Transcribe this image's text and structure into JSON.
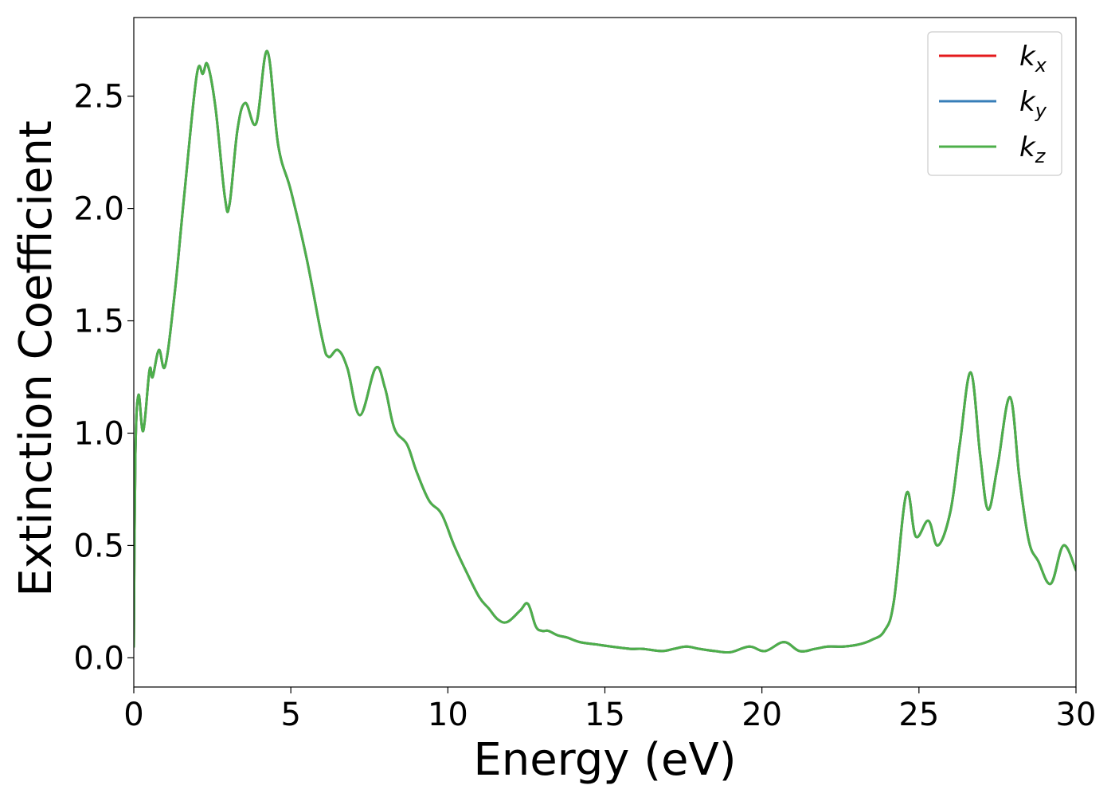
{
  "chart_data": {
    "type": "line",
    "xlabel": "Energy (eV)",
    "ylabel": "Extinction Coefficient",
    "xlim": [
      0,
      30
    ],
    "ylim": [
      -0.13,
      2.85
    ],
    "xticks": [
      "0",
      "5",
      "10",
      "15",
      "20",
      "25",
      "30"
    ],
    "yticks": [
      "0.0",
      "0.5",
      "1.0",
      "1.5",
      "2.0",
      "2.5"
    ],
    "grid": false,
    "legend_position": "top-right",
    "x": [
      0,
      0.05,
      0.15,
      0.3,
      0.5,
      0.6,
      0.8,
      1.0,
      1.3,
      1.6,
      2.0,
      2.2,
      2.35,
      2.6,
      2.9,
      3.05,
      3.3,
      3.55,
      3.9,
      4.25,
      4.6,
      5.0,
      5.5,
      6.0,
      6.2,
      6.5,
      6.8,
      7.2,
      7.7,
      8.0,
      8.3,
      8.7,
      9.0,
      9.4,
      9.8,
      10.2,
      10.6,
      11.0,
      11.3,
      11.6,
      11.9,
      12.3,
      12.55,
      12.8,
      13.0,
      13.2,
      13.5,
      13.8,
      14.2,
      14.7,
      15.2,
      15.8,
      16.2,
      16.8,
      17.2,
      17.6,
      18.0,
      18.5,
      19.0,
      19.6,
      20.1,
      20.7,
      21.2,
      21.7,
      22.1,
      22.6,
      23.1,
      23.5,
      23.9,
      24.2,
      24.6,
      24.9,
      25.3,
      25.6,
      26.0,
      26.3,
      26.65,
      26.95,
      27.2,
      27.5,
      27.9,
      28.2,
      28.5,
      28.8,
      29.2,
      29.6,
      30.0
    ],
    "series": [
      {
        "name": "k_x",
        "name_main": "k",
        "name_sub": "x",
        "color": "#e41a1c",
        "values": [
          0.05,
          0.9,
          1.17,
          1.01,
          1.28,
          1.25,
          1.37,
          1.3,
          1.62,
          2.05,
          2.59,
          2.6,
          2.64,
          2.45,
          2.05,
          2.02,
          2.35,
          2.47,
          2.38,
          2.7,
          2.28,
          2.08,
          1.78,
          1.42,
          1.34,
          1.37,
          1.29,
          1.08,
          1.29,
          1.2,
          1.02,
          0.95,
          0.83,
          0.7,
          0.64,
          0.5,
          0.38,
          0.27,
          0.22,
          0.17,
          0.16,
          0.21,
          0.24,
          0.14,
          0.12,
          0.12,
          0.1,
          0.09,
          0.07,
          0.06,
          0.05,
          0.04,
          0.04,
          0.03,
          0.04,
          0.05,
          0.04,
          0.03,
          0.025,
          0.05,
          0.03,
          0.07,
          0.03,
          0.04,
          0.05,
          0.05,
          0.06,
          0.08,
          0.12,
          0.25,
          0.73,
          0.54,
          0.61,
          0.5,
          0.65,
          0.95,
          1.27,
          0.9,
          0.66,
          0.85,
          1.16,
          0.8,
          0.52,
          0.43,
          0.33,
          0.5,
          0.39
        ]
      },
      {
        "name": "k_y",
        "name_main": "k",
        "name_sub": "y",
        "color": "#377eb8",
        "values": [
          0.05,
          0.9,
          1.17,
          1.01,
          1.28,
          1.25,
          1.37,
          1.3,
          1.62,
          2.05,
          2.59,
          2.6,
          2.64,
          2.45,
          2.05,
          2.02,
          2.35,
          2.47,
          2.38,
          2.7,
          2.28,
          2.08,
          1.78,
          1.42,
          1.34,
          1.37,
          1.29,
          1.08,
          1.29,
          1.2,
          1.02,
          0.95,
          0.83,
          0.7,
          0.64,
          0.5,
          0.38,
          0.27,
          0.22,
          0.17,
          0.16,
          0.21,
          0.24,
          0.14,
          0.12,
          0.12,
          0.1,
          0.09,
          0.07,
          0.06,
          0.05,
          0.04,
          0.04,
          0.03,
          0.04,
          0.05,
          0.04,
          0.03,
          0.025,
          0.05,
          0.03,
          0.07,
          0.03,
          0.04,
          0.05,
          0.05,
          0.06,
          0.08,
          0.12,
          0.25,
          0.73,
          0.54,
          0.61,
          0.5,
          0.65,
          0.95,
          1.27,
          0.9,
          0.66,
          0.85,
          1.16,
          0.8,
          0.52,
          0.43,
          0.33,
          0.5,
          0.39
        ]
      },
      {
        "name": "k_z",
        "name_main": "k",
        "name_sub": "z",
        "color": "#4daf4a",
        "values": [
          0.05,
          0.9,
          1.17,
          1.01,
          1.28,
          1.25,
          1.37,
          1.3,
          1.62,
          2.05,
          2.59,
          2.6,
          2.64,
          2.45,
          2.05,
          2.02,
          2.35,
          2.47,
          2.38,
          2.7,
          2.28,
          2.08,
          1.78,
          1.42,
          1.34,
          1.37,
          1.29,
          1.08,
          1.29,
          1.2,
          1.02,
          0.95,
          0.83,
          0.7,
          0.64,
          0.5,
          0.38,
          0.27,
          0.22,
          0.17,
          0.16,
          0.21,
          0.24,
          0.14,
          0.12,
          0.12,
          0.1,
          0.09,
          0.07,
          0.06,
          0.05,
          0.04,
          0.04,
          0.03,
          0.04,
          0.05,
          0.04,
          0.03,
          0.025,
          0.05,
          0.03,
          0.07,
          0.03,
          0.04,
          0.05,
          0.05,
          0.06,
          0.08,
          0.12,
          0.25,
          0.73,
          0.54,
          0.61,
          0.5,
          0.65,
          0.95,
          1.27,
          0.9,
          0.66,
          0.85,
          1.16,
          0.8,
          0.52,
          0.43,
          0.33,
          0.5,
          0.39
        ]
      }
    ]
  }
}
